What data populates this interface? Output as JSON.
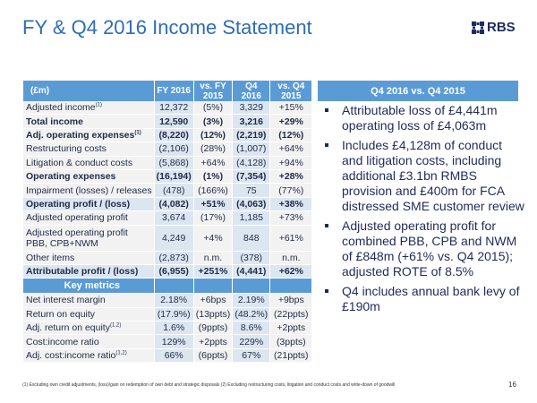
{
  "title": "FY & Q4 2016 Income Statement",
  "logo": {
    "text": "RBS"
  },
  "table": {
    "headers": [
      "(£m)",
      "FY 2016",
      "vs. FY 2015",
      "Q4 2016",
      "vs. Q4 2015"
    ],
    "rows": [
      {
        "label": "Adjusted income",
        "sup": "(1)",
        "values": [
          "12,372",
          "(5%)",
          "3,329",
          "+15%"
        ]
      },
      {
        "label": "Total income",
        "bold": true,
        "values": [
          "12,590",
          "(3%)",
          "3,216",
          "+29%"
        ]
      },
      {
        "label": "Adj. operating expenses",
        "sup": "(1)",
        "bold": true,
        "values": [
          "(8,220)",
          "(12%)",
          "(2,219)",
          "(12%)"
        ]
      },
      {
        "label": "Restructuring costs",
        "values": [
          "(2,106)",
          "(28%)",
          "(1,007)",
          "+64%"
        ]
      },
      {
        "label": "Litigation & conduct costs",
        "values": [
          "(5,868)",
          "+64%",
          "(4,128)",
          "+94%"
        ]
      },
      {
        "label": "Operating expenses",
        "bold": true,
        "values": [
          "(16,194)",
          "(1%)",
          "(7,354)",
          "+28%"
        ]
      },
      {
        "label": "Impairment (losses) / releases",
        "values": [
          "(478)",
          "(166%)",
          "75",
          "(77%)"
        ]
      },
      {
        "label": "Operating profit / (loss)",
        "bold": true,
        "highlight": true,
        "values": [
          "(4,082)",
          "+51%",
          "(4,063)",
          "+38%"
        ]
      },
      {
        "label": "Adjusted operating profit",
        "values": [
          "3,674",
          "(17%)",
          "1,185",
          "+73%"
        ]
      },
      {
        "label": "Adjusted operating profit PBB, CPB+NWM",
        "two": true,
        "values": [
          "4,249",
          "+4%",
          "848",
          "+61%"
        ]
      },
      {
        "label": "Other items",
        "values": [
          "(2,873)",
          "n.m.",
          "(378)",
          "n.m."
        ]
      },
      {
        "label": "Attributable profit / (loss)",
        "bold": true,
        "highlight": true,
        "values": [
          "(6,955)",
          "+251%",
          "(4,441)",
          "+62%"
        ]
      }
    ],
    "key_metrics_label": "Key metrics",
    "metrics": [
      {
        "label": "Net interest margin",
        "values": [
          "2.18%",
          "+6bps",
          "2.19%",
          "+9bps"
        ]
      },
      {
        "label": "Return on equity",
        "values": [
          "(17.9%)",
          "(13ppts)",
          "(48.2%)",
          "(22ppts)"
        ]
      },
      {
        "label": "Adj. return on equity",
        "sup": "(1,2)",
        "values": [
          "1.6%",
          "(9ppts)",
          "8.6%",
          "+2ppts"
        ]
      },
      {
        "label": "Cost:income ratio",
        "values": [
          "129%",
          "+2ppts",
          "229%",
          "(3ppts)"
        ]
      },
      {
        "label": "Adj. cost:income ratio",
        "sup": "(1,2)",
        "values": [
          "66%",
          "(6ppts)",
          "67%",
          "(21ppts)"
        ]
      }
    ]
  },
  "panel": {
    "heading": "Q4 2016 vs. Q4 2015",
    "bullets": [
      "Attributable loss of £4,441m operating loss of £4,063m",
      "Includes £4,128m of conduct and litigation costs, including additional £3.1bn RMBS provision and £400m for FCA distressed SME customer review",
      "Adjusted operating profit for combined PBB, CPB and NWM of £848m (+61% vs. Q4 2015); adjusted ROTE of 8.5%",
      "Q4 includes annual bank levy of £190m"
    ]
  },
  "footnote": "(1) Excluding own credit adjustments, (loss)/gain on redemption of own debt and strategic disposals (2) Excluding restructuring costs, litigation and conduct costs and write-down of goodwill",
  "page_number": "16"
}
